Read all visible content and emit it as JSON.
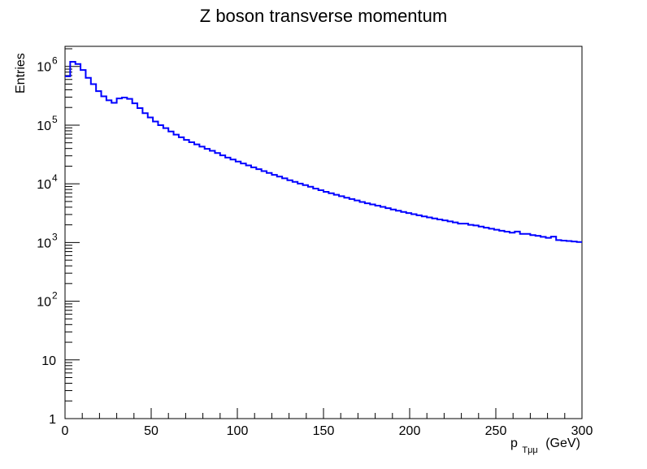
{
  "chart_data": {
    "type": "histogram",
    "title": "Z boson transverse momentum",
    "xlabel": {
      "main": "p",
      "sub": "Tμμ",
      "unit": "(GeV)"
    },
    "ylabel": "Entries",
    "xlim": [
      0,
      300
    ],
    "ylim": [
      1,
      2200000
    ],
    "y_scale": "log",
    "grid": false,
    "legend": "none",
    "line_color": "#0000ff",
    "bin_width": 3,
    "x_ticks": [
      "0",
      "50",
      "100",
      "150",
      "200",
      "250",
      "300"
    ],
    "x_tick_values": [
      0,
      50,
      100,
      150,
      200,
      250,
      300
    ],
    "y_ticks": [
      {
        "value": 1,
        "base": "1",
        "exp": ""
      },
      {
        "value": 10,
        "base": "10",
        "exp": ""
      },
      {
        "value": 100,
        "base": "10",
        "exp": "2"
      },
      {
        "value": 1000,
        "base": "10",
        "exp": "3"
      },
      {
        "value": 10000,
        "base": "10",
        "exp": "4"
      },
      {
        "value": 100000,
        "base": "10",
        "exp": "5"
      },
      {
        "value": 1000000,
        "base": "10",
        "exp": "6"
      }
    ],
    "values": [
      680000,
      1200000,
      1100000,
      870000,
      640000,
      500000,
      380000,
      310000,
      265000,
      240000,
      285000,
      295000,
      280000,
      235000,
      195000,
      160000,
      135000,
      115000,
      100000,
      89000,
      78000,
      69000,
      62000,
      56000,
      51000,
      47000,
      43000,
      39500,
      36500,
      33500,
      30500,
      28000,
      26000,
      24000,
      22200,
      20600,
      19100,
      17800,
      16500,
      15300,
      14200,
      13300,
      12400,
      11500,
      10800,
      10100,
      9500,
      8900,
      8300,
      7800,
      7300,
      6900,
      6500,
      6150,
      5800,
      5500,
      5200,
      4900,
      4650,
      4450,
      4250,
      4050,
      3850,
      3650,
      3480,
      3320,
      3180,
      3040,
      2910,
      2790,
      2680,
      2570,
      2470,
      2380,
      2290,
      2200,
      2100,
      2100,
      2000,
      1950,
      1870,
      1790,
      1720,
      1650,
      1590,
      1530,
      1470,
      1540,
      1400,
      1400,
      1340,
      1300,
      1250,
      1200,
      1260,
      1100,
      1080,
      1060,
      1040,
      1020
    ]
  }
}
